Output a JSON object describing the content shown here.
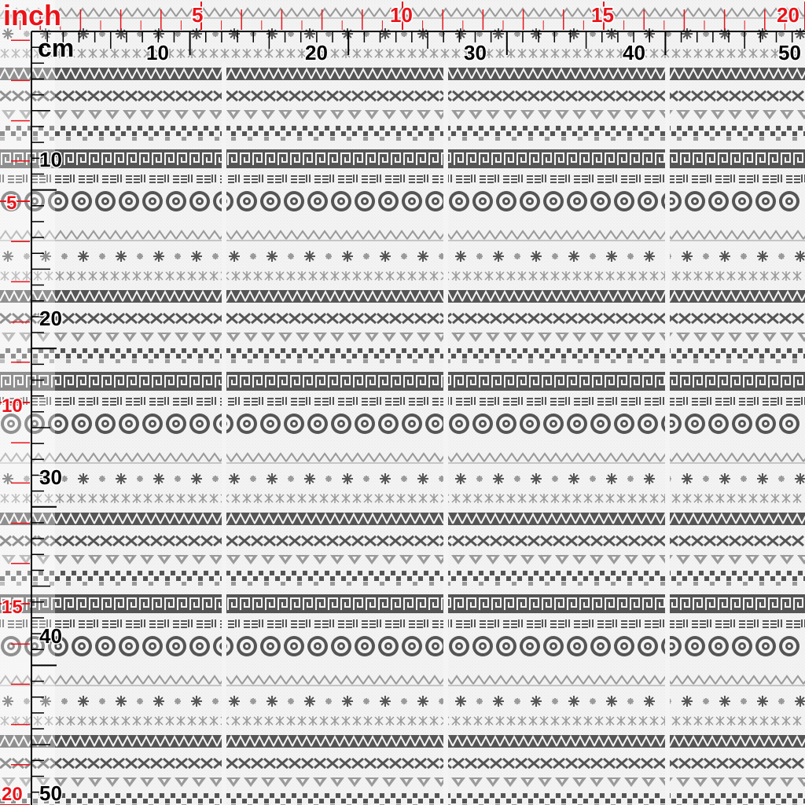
{
  "ruler": {
    "inch_unit": "inch",
    "cm_unit": "cm",
    "inch_labels": [
      "5",
      "10",
      "15",
      "20"
    ],
    "cm_labels": [
      "10",
      "20",
      "30",
      "40",
      "50"
    ],
    "left_inch_labels": [
      "5",
      "10",
      "15",
      "20"
    ],
    "left_cm_labels": [
      "10",
      "20",
      "30",
      "40",
      "50"
    ],
    "inch_color": "#e8141a",
    "cm_color": "#000000"
  },
  "fabric": {
    "pattern": "tribal-border-stripes",
    "background": "#f4f4f4",
    "ink_dark": "#555555",
    "ink_light": "#9a9a9a",
    "stripes": [
      "zigzag-band",
      "x-chevron-row",
      "triangle-row",
      "checker-row",
      "greek-key-band",
      "dash-glyph-row",
      "circle-medallion-row",
      "light-zigzag-row",
      "star-row",
      "asterisk-row"
    ]
  }
}
